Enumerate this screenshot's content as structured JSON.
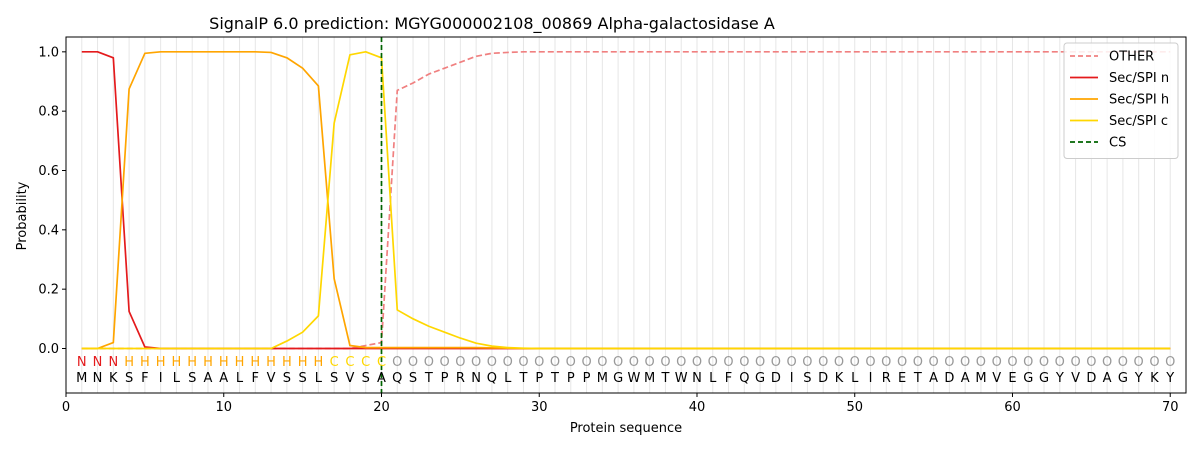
{
  "chart_data": {
    "type": "line",
    "title": "SignalP 6.0 prediction: MGYG000002108_00869 Alpha-galactosidase A",
    "xlabel": "Protein sequence",
    "ylabel": "Probability",
    "xlim": [
      0,
      71
    ],
    "ylim": [
      -0.15,
      1.05
    ],
    "xticks": [
      0,
      10,
      20,
      30,
      40,
      50,
      60,
      70
    ],
    "yticks": [
      0.0,
      0.2,
      0.4,
      0.6,
      0.8,
      1.0
    ],
    "x": [
      1,
      2,
      3,
      4,
      5,
      6,
      7,
      8,
      9,
      10,
      11,
      12,
      13,
      14,
      15,
      16,
      17,
      18,
      19,
      20,
      21,
      22,
      23,
      24,
      25,
      26,
      27,
      28,
      29,
      30,
      31,
      32,
      33,
      34,
      35,
      36,
      37,
      38,
      39,
      40,
      41,
      42,
      43,
      44,
      45,
      46,
      47,
      48,
      49,
      50,
      51,
      52,
      53,
      54,
      55,
      56,
      57,
      58,
      59,
      60,
      61,
      62,
      63,
      64,
      65,
      66,
      67,
      68,
      69,
      70
    ],
    "sequence": [
      "M",
      "N",
      "K",
      "S",
      "F",
      "I",
      "L",
      "S",
      "A",
      "A",
      "L",
      "F",
      "V",
      "S",
      "S",
      "L",
      "S",
      "V",
      "S",
      "A",
      "Q",
      "S",
      "T",
      "P",
      "R",
      "N",
      "Q",
      "L",
      "T",
      "P",
      "T",
      "P",
      "P",
      "M",
      "G",
      "W",
      "M",
      "T",
      "W",
      "N",
      "L",
      "F",
      "Q",
      "G",
      "D",
      "I",
      "S",
      "D",
      "K",
      "L",
      "I",
      "R",
      "E",
      "T",
      "A",
      "D",
      "A",
      "M",
      "V",
      "E",
      "G",
      "G",
      "Y",
      "V",
      "D",
      "A",
      "G",
      "Y",
      "K",
      "Y"
    ],
    "region_labels": [
      "N",
      "N",
      "N",
      "H",
      "H",
      "H",
      "H",
      "H",
      "H",
      "H",
      "H",
      "H",
      "H",
      "H",
      "H",
      "H",
      "C",
      "C",
      "C",
      "C",
      "O",
      "O",
      "O",
      "O",
      "O",
      "O",
      "O",
      "O",
      "O",
      "O",
      "O",
      "O",
      "O",
      "O",
      "O",
      "O",
      "O",
      "O",
      "O",
      "O",
      "O",
      "O",
      "O",
      "O",
      "O",
      "O",
      "O",
      "O",
      "O",
      "O",
      "O",
      "O",
      "O",
      "O",
      "O",
      "O",
      "O",
      "O",
      "O",
      "O",
      "O",
      "O",
      "O",
      "O",
      "O",
      "O",
      "O",
      "O",
      "O",
      "O"
    ],
    "region_colors": {
      "N": "#e41a1c",
      "H": "#ffa500",
      "C": "#ffd700",
      "O": "#999999"
    },
    "series": [
      {
        "name": "OTHER",
        "color": "#f08080",
        "dash": true,
        "values": [
          0,
          0,
          0,
          0,
          0,
          0,
          0,
          0,
          0,
          0,
          0,
          0,
          0,
          0,
          0,
          0,
          0,
          0,
          0.01,
          0.02,
          0.87,
          0.895,
          0.925,
          0.945,
          0.965,
          0.985,
          0.995,
          0.998,
          1,
          1,
          1,
          1,
          1,
          1,
          1,
          1,
          1,
          1,
          1,
          1,
          1,
          1,
          1,
          1,
          1,
          1,
          1,
          1,
          1,
          1,
          1,
          1,
          1,
          1,
          1,
          1,
          1,
          1,
          1,
          1,
          1,
          1,
          1,
          1,
          1,
          1,
          1,
          1,
          1,
          1
        ]
      },
      {
        "name": "Sec/SPI n",
        "color": "#e41a1c",
        "dash": false,
        "values": [
          1,
          1,
          0.98,
          0.125,
          0.005,
          0,
          0,
          0,
          0,
          0,
          0,
          0,
          0,
          0,
          0,
          0,
          0,
          0,
          0,
          0,
          0,
          0,
          0,
          0,
          0,
          0,
          0,
          0,
          0,
          0,
          0,
          0,
          0,
          0,
          0,
          0,
          0,
          0,
          0,
          0,
          0,
          0,
          0,
          0,
          0,
          0,
          0,
          0,
          0,
          0,
          0,
          0,
          0,
          0,
          0,
          0,
          0,
          0,
          0,
          0,
          0,
          0,
          0,
          0,
          0,
          0,
          0,
          0,
          0,
          0
        ]
      },
      {
        "name": "Sec/SPI h",
        "color": "#ffa500",
        "dash": false,
        "values": [
          0,
          0,
          0.02,
          0.875,
          0.995,
          1,
          1,
          1,
          1,
          1,
          1,
          1,
          0.998,
          0.98,
          0.945,
          0.885,
          0.235,
          0.01,
          0.003,
          0.003,
          0.003,
          0.003,
          0.003,
          0.003,
          0.003,
          0.003,
          0.002,
          0.001,
          0,
          0,
          0,
          0,
          0,
          0,
          0,
          0,
          0,
          0,
          0,
          0,
          0,
          0,
          0,
          0,
          0,
          0,
          0,
          0,
          0,
          0,
          0,
          0,
          0,
          0,
          0,
          0,
          0,
          0,
          0,
          0,
          0,
          0,
          0,
          0,
          0,
          0,
          0,
          0,
          0,
          0
        ]
      },
      {
        "name": "Sec/SPI c",
        "color": "#ffd700",
        "dash": false,
        "values": [
          0,
          0,
          0,
          0,
          0,
          0,
          0,
          0,
          0,
          0,
          0,
          0,
          0,
          0.025,
          0.055,
          0.11,
          0.76,
          0.99,
          1,
          0.98,
          0.13,
          0.1,
          0.075,
          0.055,
          0.035,
          0.018,
          0.008,
          0.003,
          0.001,
          0,
          0,
          0,
          0,
          0,
          0,
          0,
          0,
          0,
          0,
          0,
          0,
          0,
          0,
          0,
          0,
          0,
          0,
          0,
          0,
          0,
          0,
          0,
          0,
          0,
          0,
          0,
          0,
          0,
          0,
          0,
          0,
          0,
          0,
          0,
          0,
          0,
          0,
          0,
          0,
          0
        ]
      }
    ],
    "cs": {
      "name": "CS",
      "x": 20,
      "color": "#006400"
    },
    "legend": "top-right"
  }
}
